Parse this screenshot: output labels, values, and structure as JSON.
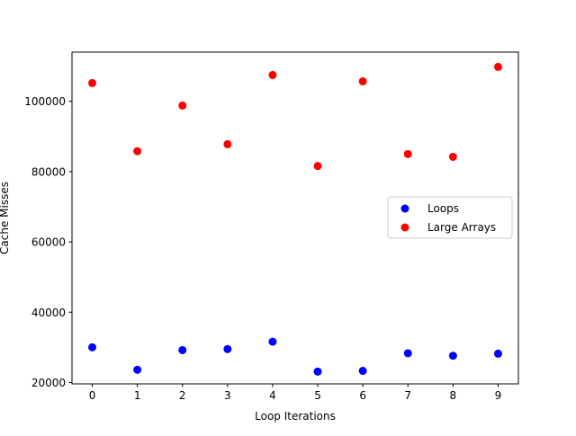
{
  "chart_data": {
    "type": "scatter",
    "title": "",
    "xlabel": "Loop Iterations",
    "ylabel": "Cache Misses",
    "xlim": [
      -0.45,
      9.45
    ],
    "ylim": [
      19600,
      114000
    ],
    "xticks": [
      0,
      1,
      2,
      3,
      4,
      5,
      6,
      7,
      8,
      9
    ],
    "xtick_labels": [
      "0",
      "1",
      "2",
      "3",
      "4",
      "5",
      "6",
      "7",
      "8",
      "9"
    ],
    "yticks": [
      20000,
      40000,
      60000,
      80000,
      100000
    ],
    "ytick_labels": [
      "20000",
      "40000",
      "60000",
      "80000",
      "100000"
    ],
    "grid": false,
    "legend_position": "center-right",
    "series": [
      {
        "name": "Loops",
        "color": "#0000ff",
        "x": [
          0,
          1,
          2,
          3,
          4,
          5,
          6,
          7,
          8,
          9
        ],
        "y": [
          30000,
          23600,
          29200,
          29500,
          31600,
          23100,
          23300,
          28300,
          27600,
          28200
        ]
      },
      {
        "name": "Large Arrays",
        "color": "#ff0000",
        "x": [
          0,
          1,
          2,
          3,
          4,
          5,
          6,
          7,
          8,
          9
        ],
        "y": [
          105200,
          85800,
          98800,
          87800,
          107500,
          81600,
          105700,
          85000,
          84200,
          109800
        ]
      }
    ]
  }
}
